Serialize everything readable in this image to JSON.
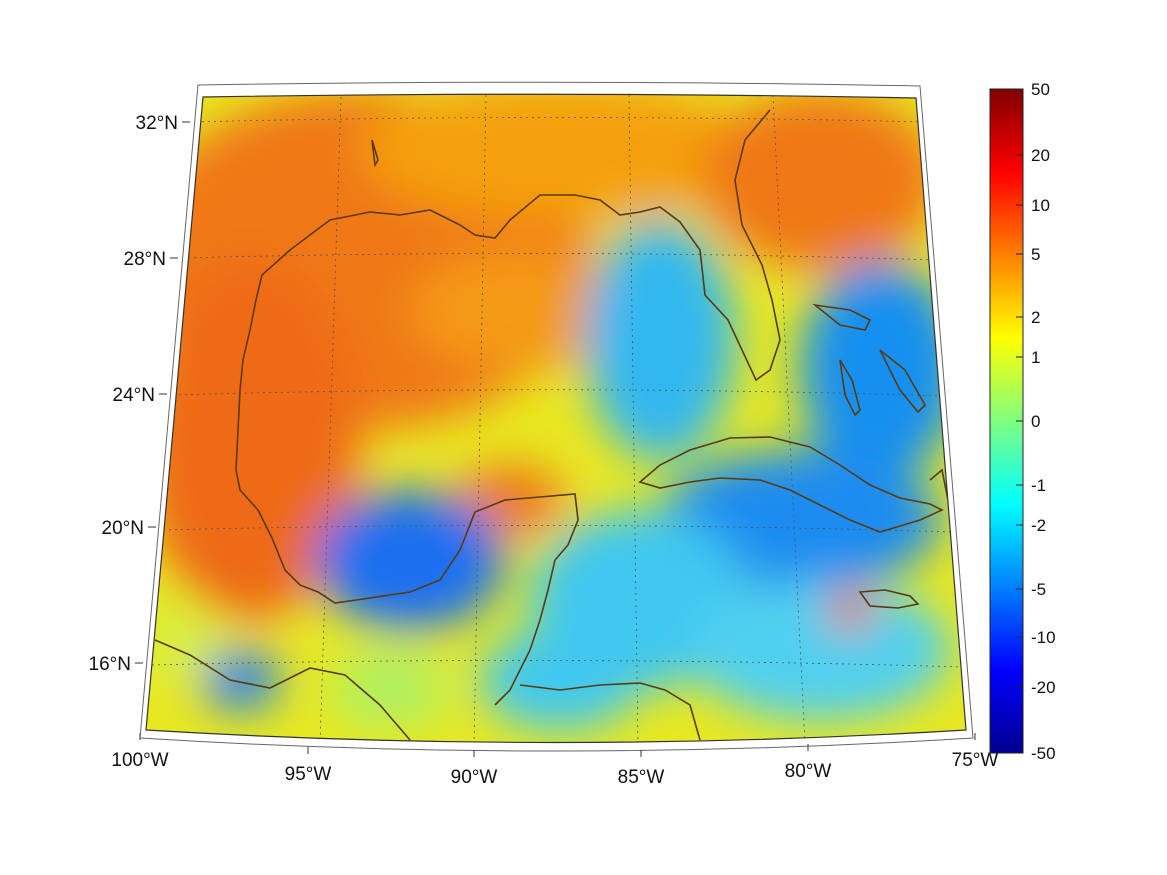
{
  "map": {
    "longitude_labels": [
      "100°W",
      "95°W",
      "90°W",
      "85°W",
      "80°W",
      "75°W"
    ],
    "latitude_labels": [
      "32°N",
      "28°N",
      "24°N",
      "20°N",
      "16°N"
    ],
    "extent": {
      "lon_min": -100,
      "lon_max": -75,
      "lat_min": 14,
      "lat_max": 33
    },
    "coastline_color": "#5a3a12",
    "grid": "dotted"
  },
  "colorbar": {
    "tick_labels": [
      "50",
      "20",
      "10",
      "5",
      "2",
      "1",
      "0",
      "-1",
      "-2",
      "-5",
      "-10",
      "-20",
      "-50"
    ],
    "colormap": "jet",
    "scale": "symmetric-log",
    "range": [
      -50,
      50
    ]
  }
}
